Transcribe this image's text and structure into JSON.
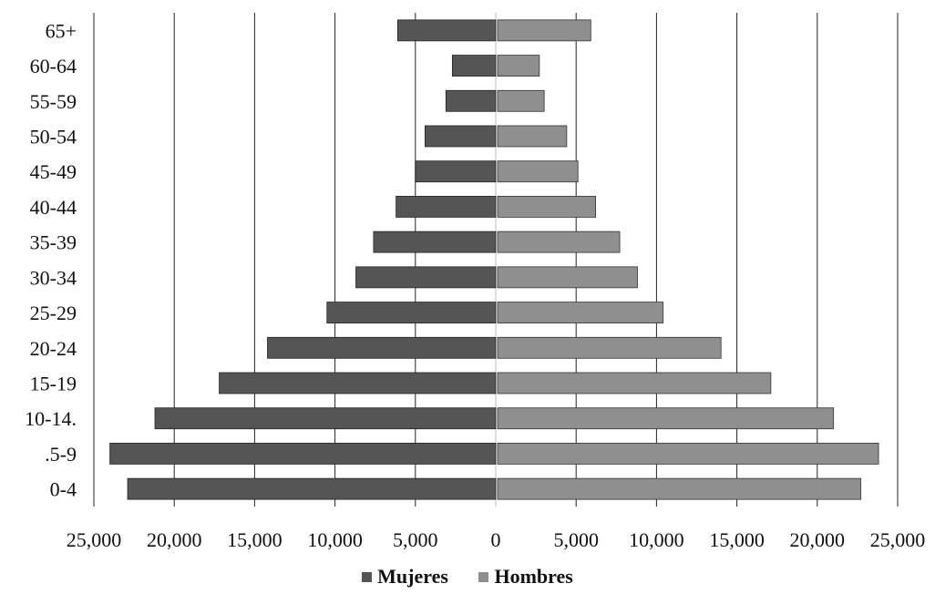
{
  "chart_data": {
    "type": "bar",
    "orientation": "horizontal",
    "layout": "population-pyramid",
    "categories": [
      "65+",
      "60-64",
      "55-59",
      "50-54",
      "45-49",
      "40-44",
      "35-39",
      "30-34",
      "25-29",
      "20-24",
      "15-19",
      "10-14.",
      ".5-9",
      "0-4"
    ],
    "series": [
      {
        "name": "Mujeres",
        "side": "left",
        "color": "#555555",
        "values": [
          6100,
          2700,
          3100,
          4400,
          5000,
          6200,
          7600,
          8700,
          10500,
          14200,
          17200,
          21200,
          24000,
          22900
        ]
      },
      {
        "name": "Hombres",
        "side": "right",
        "color": "#8f8f8f",
        "values": [
          5800,
          2600,
          2900,
          4300,
          5000,
          6100,
          7600,
          8700,
          10300,
          13900,
          17000,
          20900,
          23700,
          22600
        ]
      }
    ],
    "xticks": [
      "25,000",
      "20,000",
      "15,000",
      "10,000",
      "5,000",
      "0",
      "5,000",
      "10,000",
      "15,000",
      "20,000",
      "25,000"
    ],
    "xlim": [
      -25000,
      25000
    ],
    "grid": "vertical",
    "legend": "bottom-center",
    "title": "",
    "xlabel": "",
    "ylabel": ""
  }
}
